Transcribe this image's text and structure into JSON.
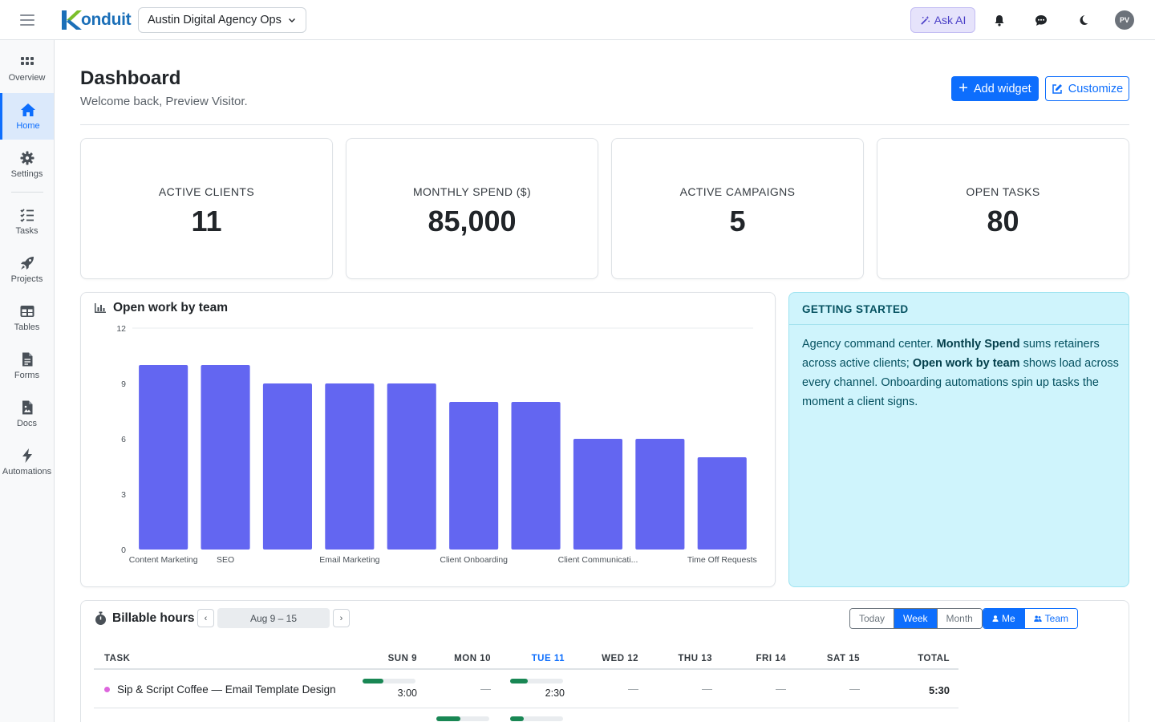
{
  "header": {
    "logo_text": "onduit",
    "workspace": "Austin Digital Agency Ops",
    "ask_ai": "Ask AI",
    "avatar_initials": "PV"
  },
  "sidebar": {
    "items": [
      {
        "label": "Overview",
        "icon": "grid-icon"
      },
      {
        "label": "Home",
        "icon": "home-icon",
        "active": true
      },
      {
        "label": "Settings",
        "icon": "gear-icon"
      },
      {
        "label": "Tasks",
        "icon": "checklist-icon"
      },
      {
        "label": "Projects",
        "icon": "rocket-icon"
      },
      {
        "label": "Tables",
        "icon": "table-icon"
      },
      {
        "label": "Forms",
        "icon": "form-icon"
      },
      {
        "label": "Docs",
        "icon": "doc-icon"
      },
      {
        "label": "Automations",
        "icon": "bolt-icon"
      }
    ]
  },
  "page": {
    "title": "Dashboard",
    "subtitle": "Welcome back, Preview Visitor.",
    "add_widget": "Add widget",
    "customize": "Customize"
  },
  "stats": [
    {
      "label": "ACTIVE CLIENTS",
      "value": "11"
    },
    {
      "label": "MONTHLY SPEND ($)",
      "value": "85,000"
    },
    {
      "label": "ACTIVE CAMPAIGNS",
      "value": "5"
    },
    {
      "label": "OPEN TASKS",
      "value": "80"
    }
  ],
  "chart_card": {
    "title": "Open work by team"
  },
  "chart_data": {
    "type": "bar",
    "title": "Open work by team",
    "categories": [
      "Content Marketing",
      "SEO",
      "",
      "Email Marketing",
      "",
      "Client Onboarding",
      "",
      "Client Communicati...",
      "",
      "Time Off Requests"
    ],
    "values": [
      10,
      10,
      9,
      9,
      9,
      8,
      8,
      6,
      6,
      5
    ],
    "xlabel": "",
    "ylabel": "",
    "ylim": [
      0,
      12
    ],
    "yticks": [
      "0",
      "3",
      "6",
      "9",
      "12"
    ],
    "bar_color": "#6366f1",
    "grid": true
  },
  "getting_started": {
    "title": "GETTING STARTED",
    "t1": "Agency command center. ",
    "b1": "Monthly Spend",
    "t2": " sums retainers across active clients; ",
    "b2": "Open work by team",
    "t3": " shows load across every channel. Onboarding automations spin up tasks the moment a client signs."
  },
  "billable": {
    "title": "Billable hours",
    "range": "Aug 9 – 15",
    "prev": "‹",
    "next": "›",
    "period_options": [
      "Today",
      "Week",
      "Month"
    ],
    "period_selected": "Week",
    "scope_options": [
      "Me",
      "Team"
    ],
    "scope_selected": "Me",
    "columns": [
      "TASK",
      "SUN 9",
      "MON 10",
      "TUE 11",
      "WED 12",
      "THU 13",
      "FRI 14",
      "SAT 15",
      "TOTAL"
    ],
    "today_column": "TUE 11",
    "rows": [
      {
        "task": "Sip & Script Coffee — Email Template Design",
        "dot_color": "#dd66dd",
        "cells": [
          {
            "value": "3:00",
            "progress": 0.4
          },
          {
            "value": "—"
          },
          {
            "value": "2:30",
            "progress": 0.33
          },
          {
            "value": "—"
          },
          {
            "value": "—"
          },
          {
            "value": "—"
          },
          {
            "value": "—"
          }
        ],
        "total": "5:30"
      }
    ],
    "partial_row_progress": [
      0.45,
      0.25
    ]
  }
}
